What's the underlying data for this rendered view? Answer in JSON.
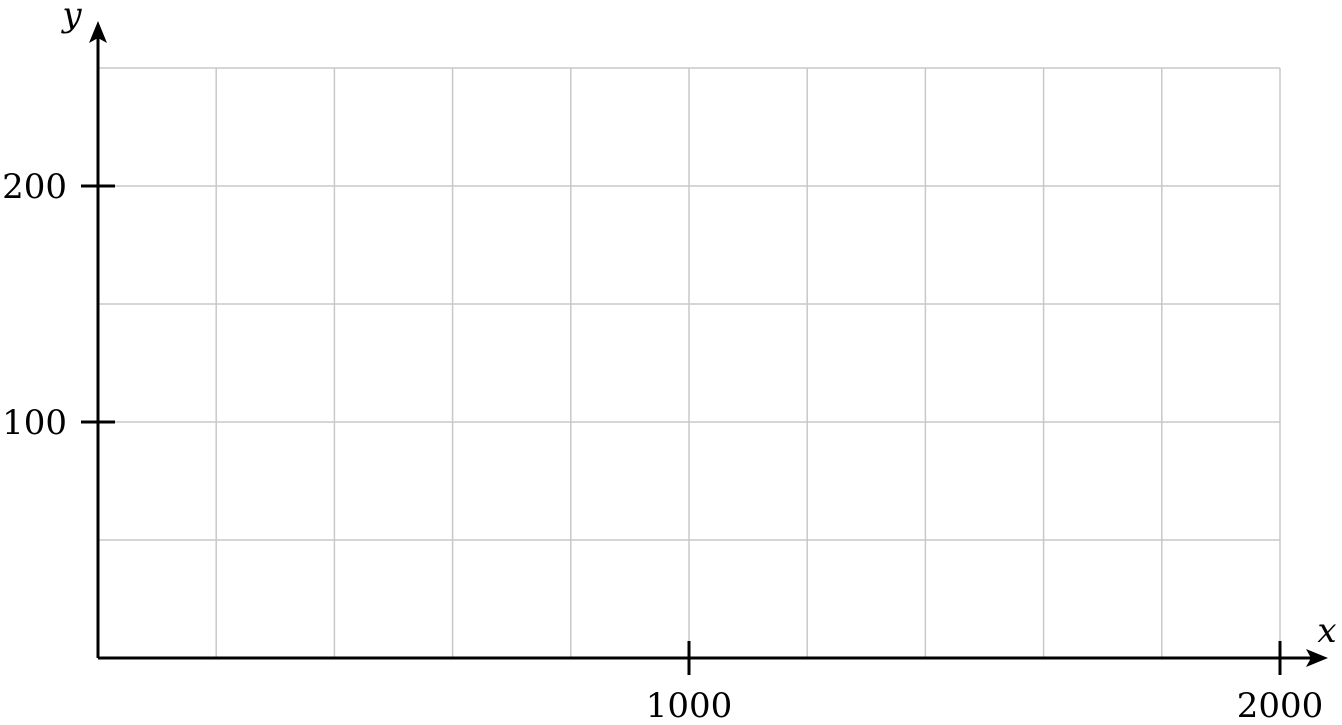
{
  "chart_data": {
    "type": "line",
    "title": "",
    "xlabel": "x",
    "ylabel": "y",
    "xlim": [
      0,
      2000
    ],
    "ylim": [
      0,
      250
    ],
    "grid": true,
    "x_grid_step": 200,
    "y_grid_step": 50,
    "x_ticks": [
      {
        "value": 1000,
        "label": "1000"
      },
      {
        "value": 2000,
        "label": "2000"
      }
    ],
    "y_ticks": [
      {
        "value": 100,
        "label": "100"
      },
      {
        "value": 200,
        "label": "200"
      }
    ],
    "series": []
  },
  "colors": {
    "grid": "#c8c8c8",
    "axis": "#000000"
  }
}
